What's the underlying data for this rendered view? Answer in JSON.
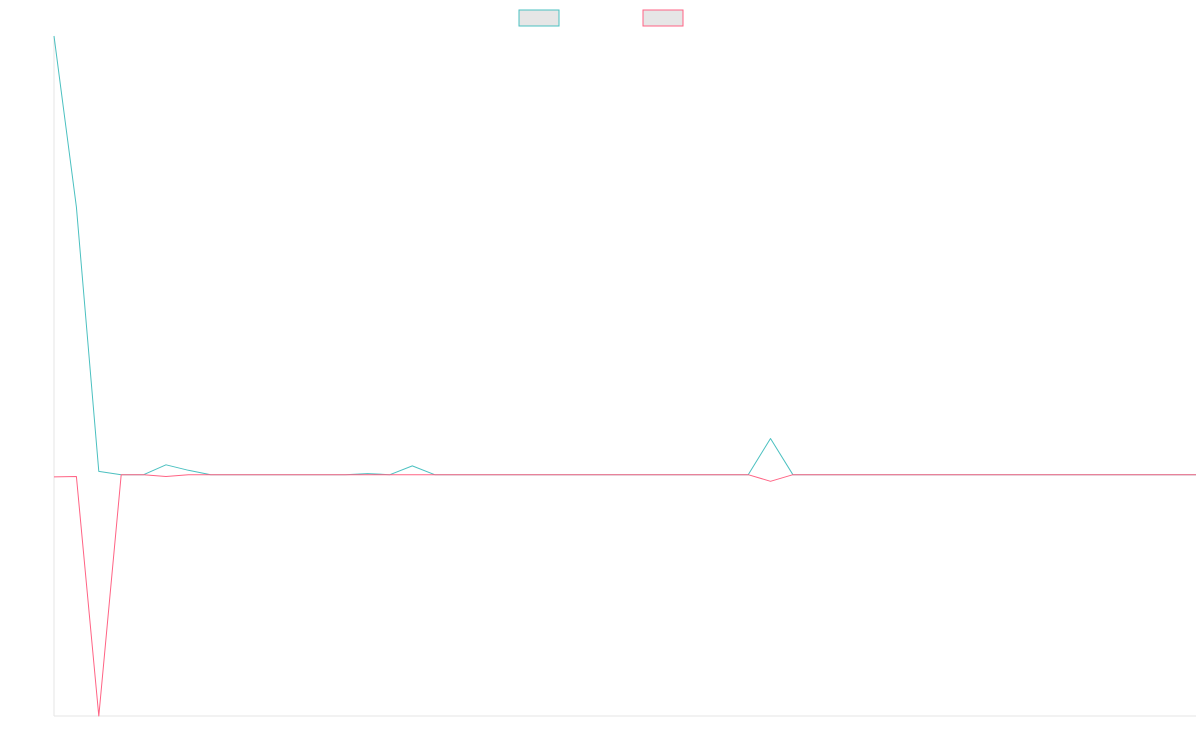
{
  "chart_data": {
    "type": "line",
    "title": "",
    "xlabel": "",
    "ylabel": "",
    "x": [
      0,
      1,
      2,
      3,
      4,
      5,
      6,
      7,
      8,
      9,
      10,
      11,
      12,
      13,
      14,
      15,
      16,
      17,
      18,
      19,
      20,
      21,
      22,
      23,
      24,
      25,
      26,
      27,
      28,
      29,
      30,
      31,
      32,
      33,
      34,
      35,
      36,
      37,
      38,
      39,
      40,
      41,
      42,
      43,
      44,
      45,
      46,
      47,
      48,
      49,
      50,
      51
    ],
    "xlim": [
      0,
      51
    ],
    "ylim": [
      -1.1,
      2.0
    ],
    "grid": false,
    "legend": {
      "position": "top-center",
      "entries": [
        "",
        ""
      ]
    },
    "series": [
      {
        "color": "#4bc0c0",
        "fill": "#e6e6e6",
        "values": [
          2.0,
          1.22,
          0.015,
          0.0,
          0.0,
          0.045,
          0.02,
          0.0,
          0.0,
          0.0,
          0.0,
          0.0,
          0.0,
          0.0,
          0.005,
          0.0,
          0.04,
          0.0,
          0.0,
          0.0,
          0.0,
          0.0,
          0.0,
          0.0,
          0.0,
          0.0,
          0.0,
          0.0,
          0.0,
          0.0,
          0.0,
          0.0,
          0.165,
          0.0,
          0.0,
          0.0,
          0.0,
          0.0,
          0.0,
          0.0,
          0.0,
          0.0,
          0.0,
          0.0,
          0.0,
          0.0,
          0.0,
          0.0,
          0.0,
          0.0,
          0.0,
          0.0
        ]
      },
      {
        "color": "#ff6384",
        "fill": "#e6e6e6",
        "values": [
          -0.01,
          -0.008,
          -1.1,
          0.0,
          0.0,
          -0.008,
          0.0,
          0.0,
          0.0,
          0.0,
          0.0,
          0.0,
          0.0,
          0.0,
          0.0,
          0.0,
          0.0,
          0.0,
          0.0,
          0.0,
          0.0,
          0.0,
          0.0,
          0.0,
          0.0,
          0.0,
          0.0,
          0.0,
          0.0,
          0.0,
          0.0,
          0.0,
          -0.03,
          0.0,
          0.0,
          0.0,
          0.0,
          0.0,
          0.0,
          0.0,
          0.0,
          0.0,
          0.0,
          0.0,
          0.0,
          0.0,
          0.0,
          0.0,
          0.0,
          0.0,
          0.0,
          0.0
        ]
      }
    ]
  }
}
